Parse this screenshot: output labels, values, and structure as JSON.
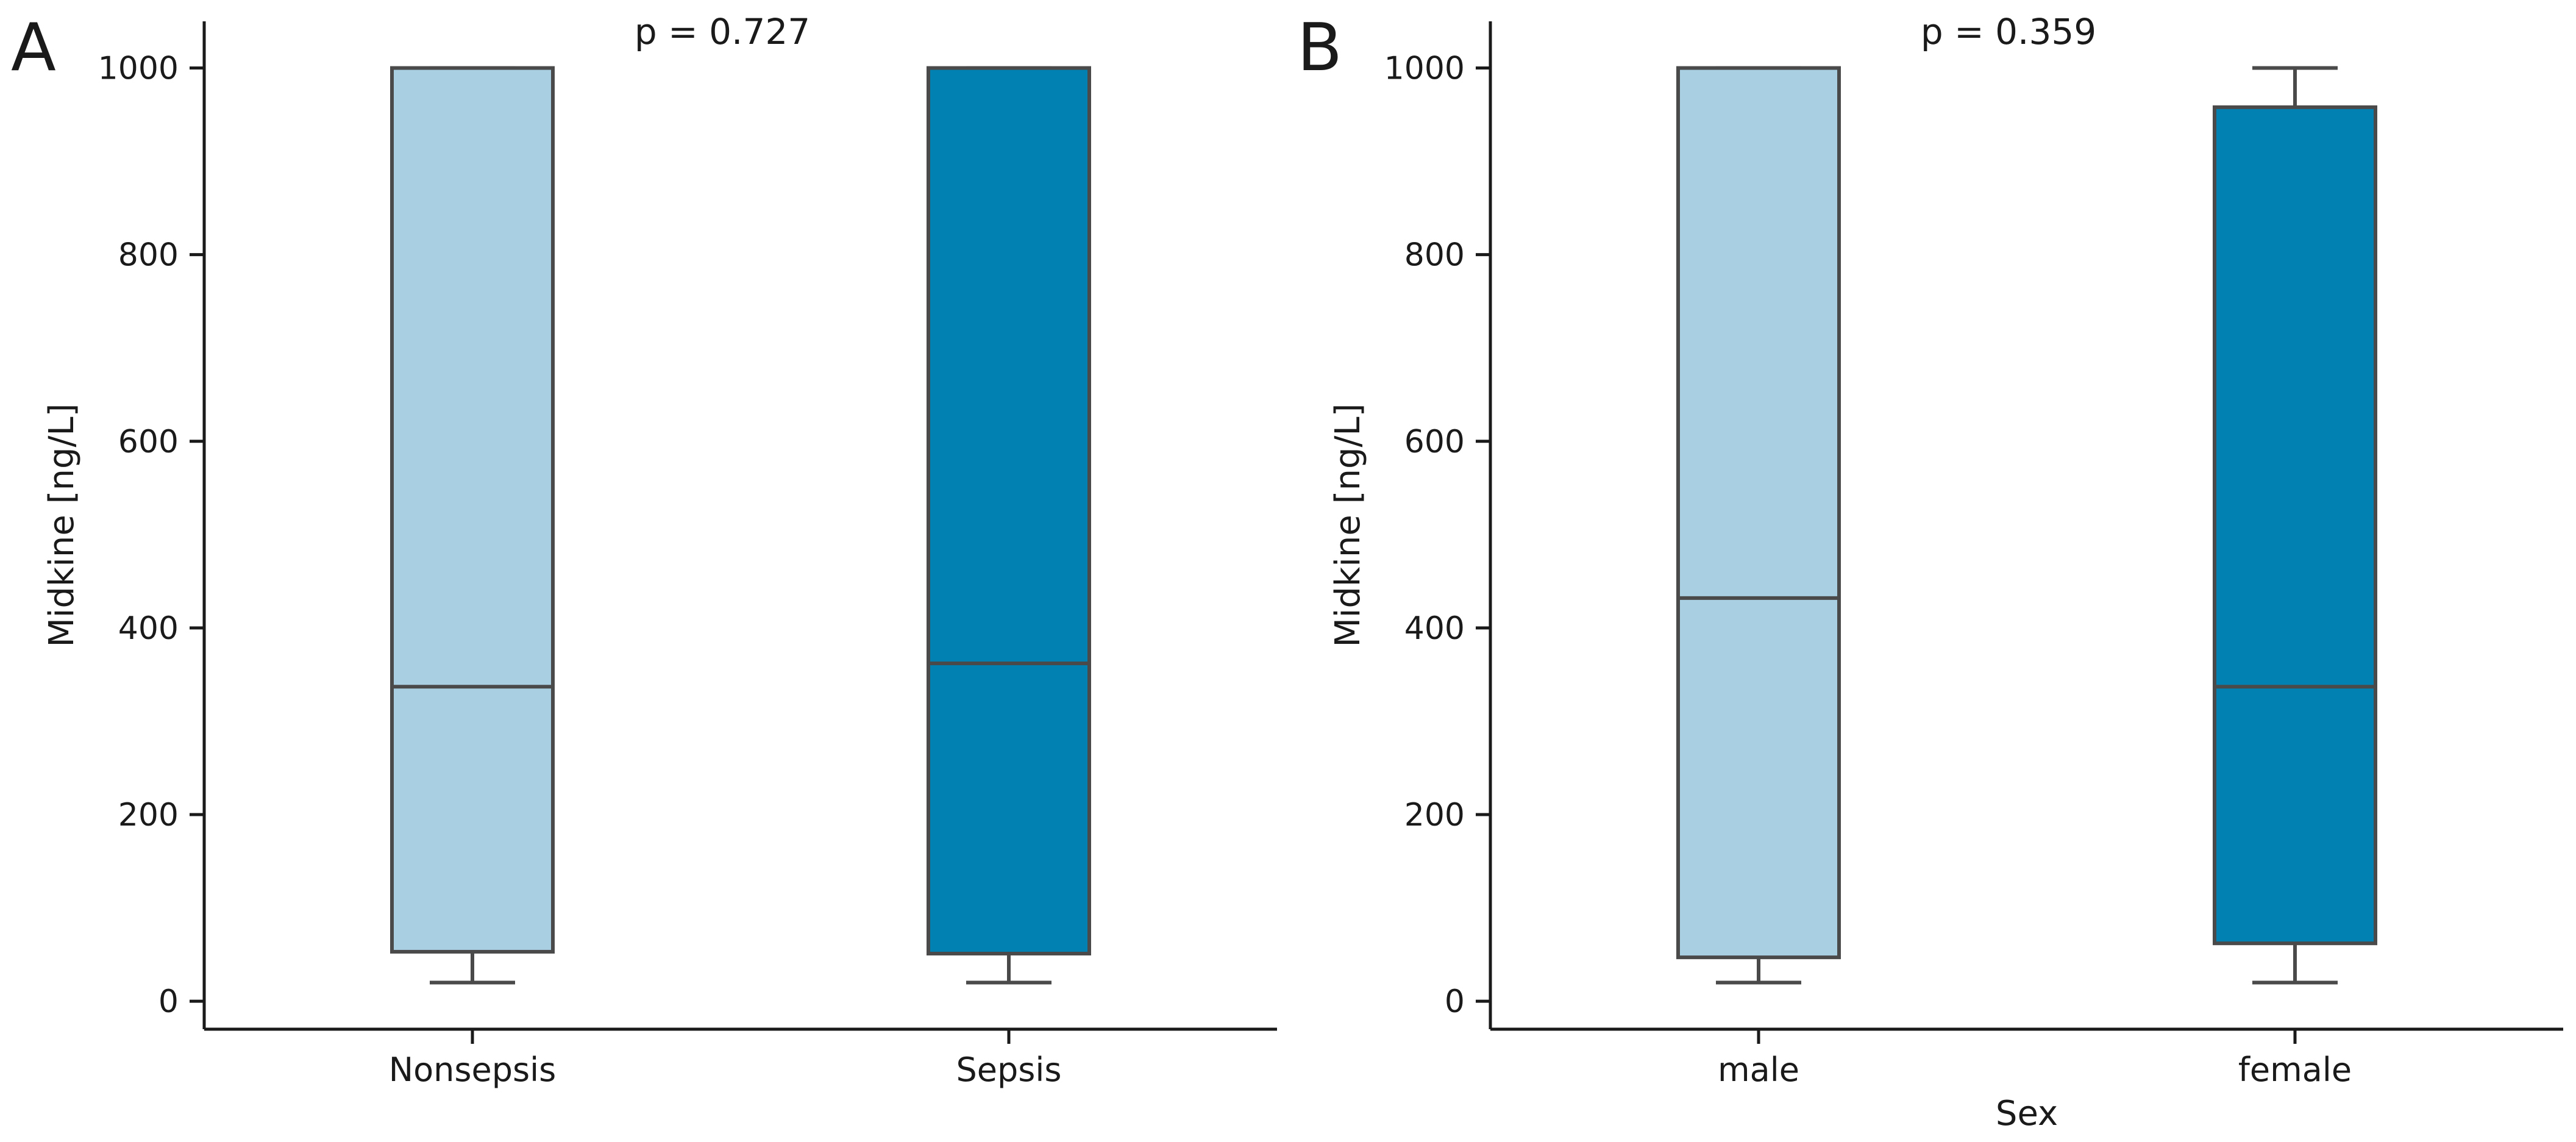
{
  "colors": {
    "light": "#a9cfe2",
    "dark": "#0081b1",
    "edge": "#4a4a4a",
    "axis": "#1a1a1a"
  },
  "chart_data": [
    {
      "type": "box",
      "panel_label": "A",
      "annotation": "p = 0.727",
      "xlabel": "",
      "ylabel": "Midkine [ng/L]",
      "ylim": [
        -30,
        1050
      ],
      "yticks": [
        0,
        200,
        400,
        600,
        800,
        1000
      ],
      "categories": [
        "Nonsepsis",
        "Sepsis"
      ],
      "boxes": [
        {
          "name": "Nonsepsis",
          "whisker_low": 20,
          "q1": 53,
          "median": 337,
          "q3": 1000,
          "whisker_high": 1000,
          "color": "#a9cfe2"
        },
        {
          "name": "Sepsis",
          "whisker_low": 20,
          "q1": 51,
          "median": 362,
          "q3": 1000,
          "whisker_high": 1000,
          "color": "#0081b1"
        }
      ]
    },
    {
      "type": "box",
      "panel_label": "B",
      "annotation": "p = 0.359",
      "xlabel": "Sex",
      "ylabel": "Midkine [ng/L]",
      "ylim": [
        -30,
        1050
      ],
      "yticks": [
        0,
        200,
        400,
        600,
        800,
        1000
      ],
      "categories": [
        "male",
        "female"
      ],
      "boxes": [
        {
          "name": "male",
          "whisker_low": 20,
          "q1": 47,
          "median": 432,
          "q3": 1000,
          "whisker_high": 1000,
          "color": "#a9cfe2"
        },
        {
          "name": "female",
          "whisker_low": 20,
          "q1": 62,
          "median": 337,
          "q3": 958,
          "whisker_high": 1000,
          "color": "#0081b1"
        }
      ]
    }
  ]
}
